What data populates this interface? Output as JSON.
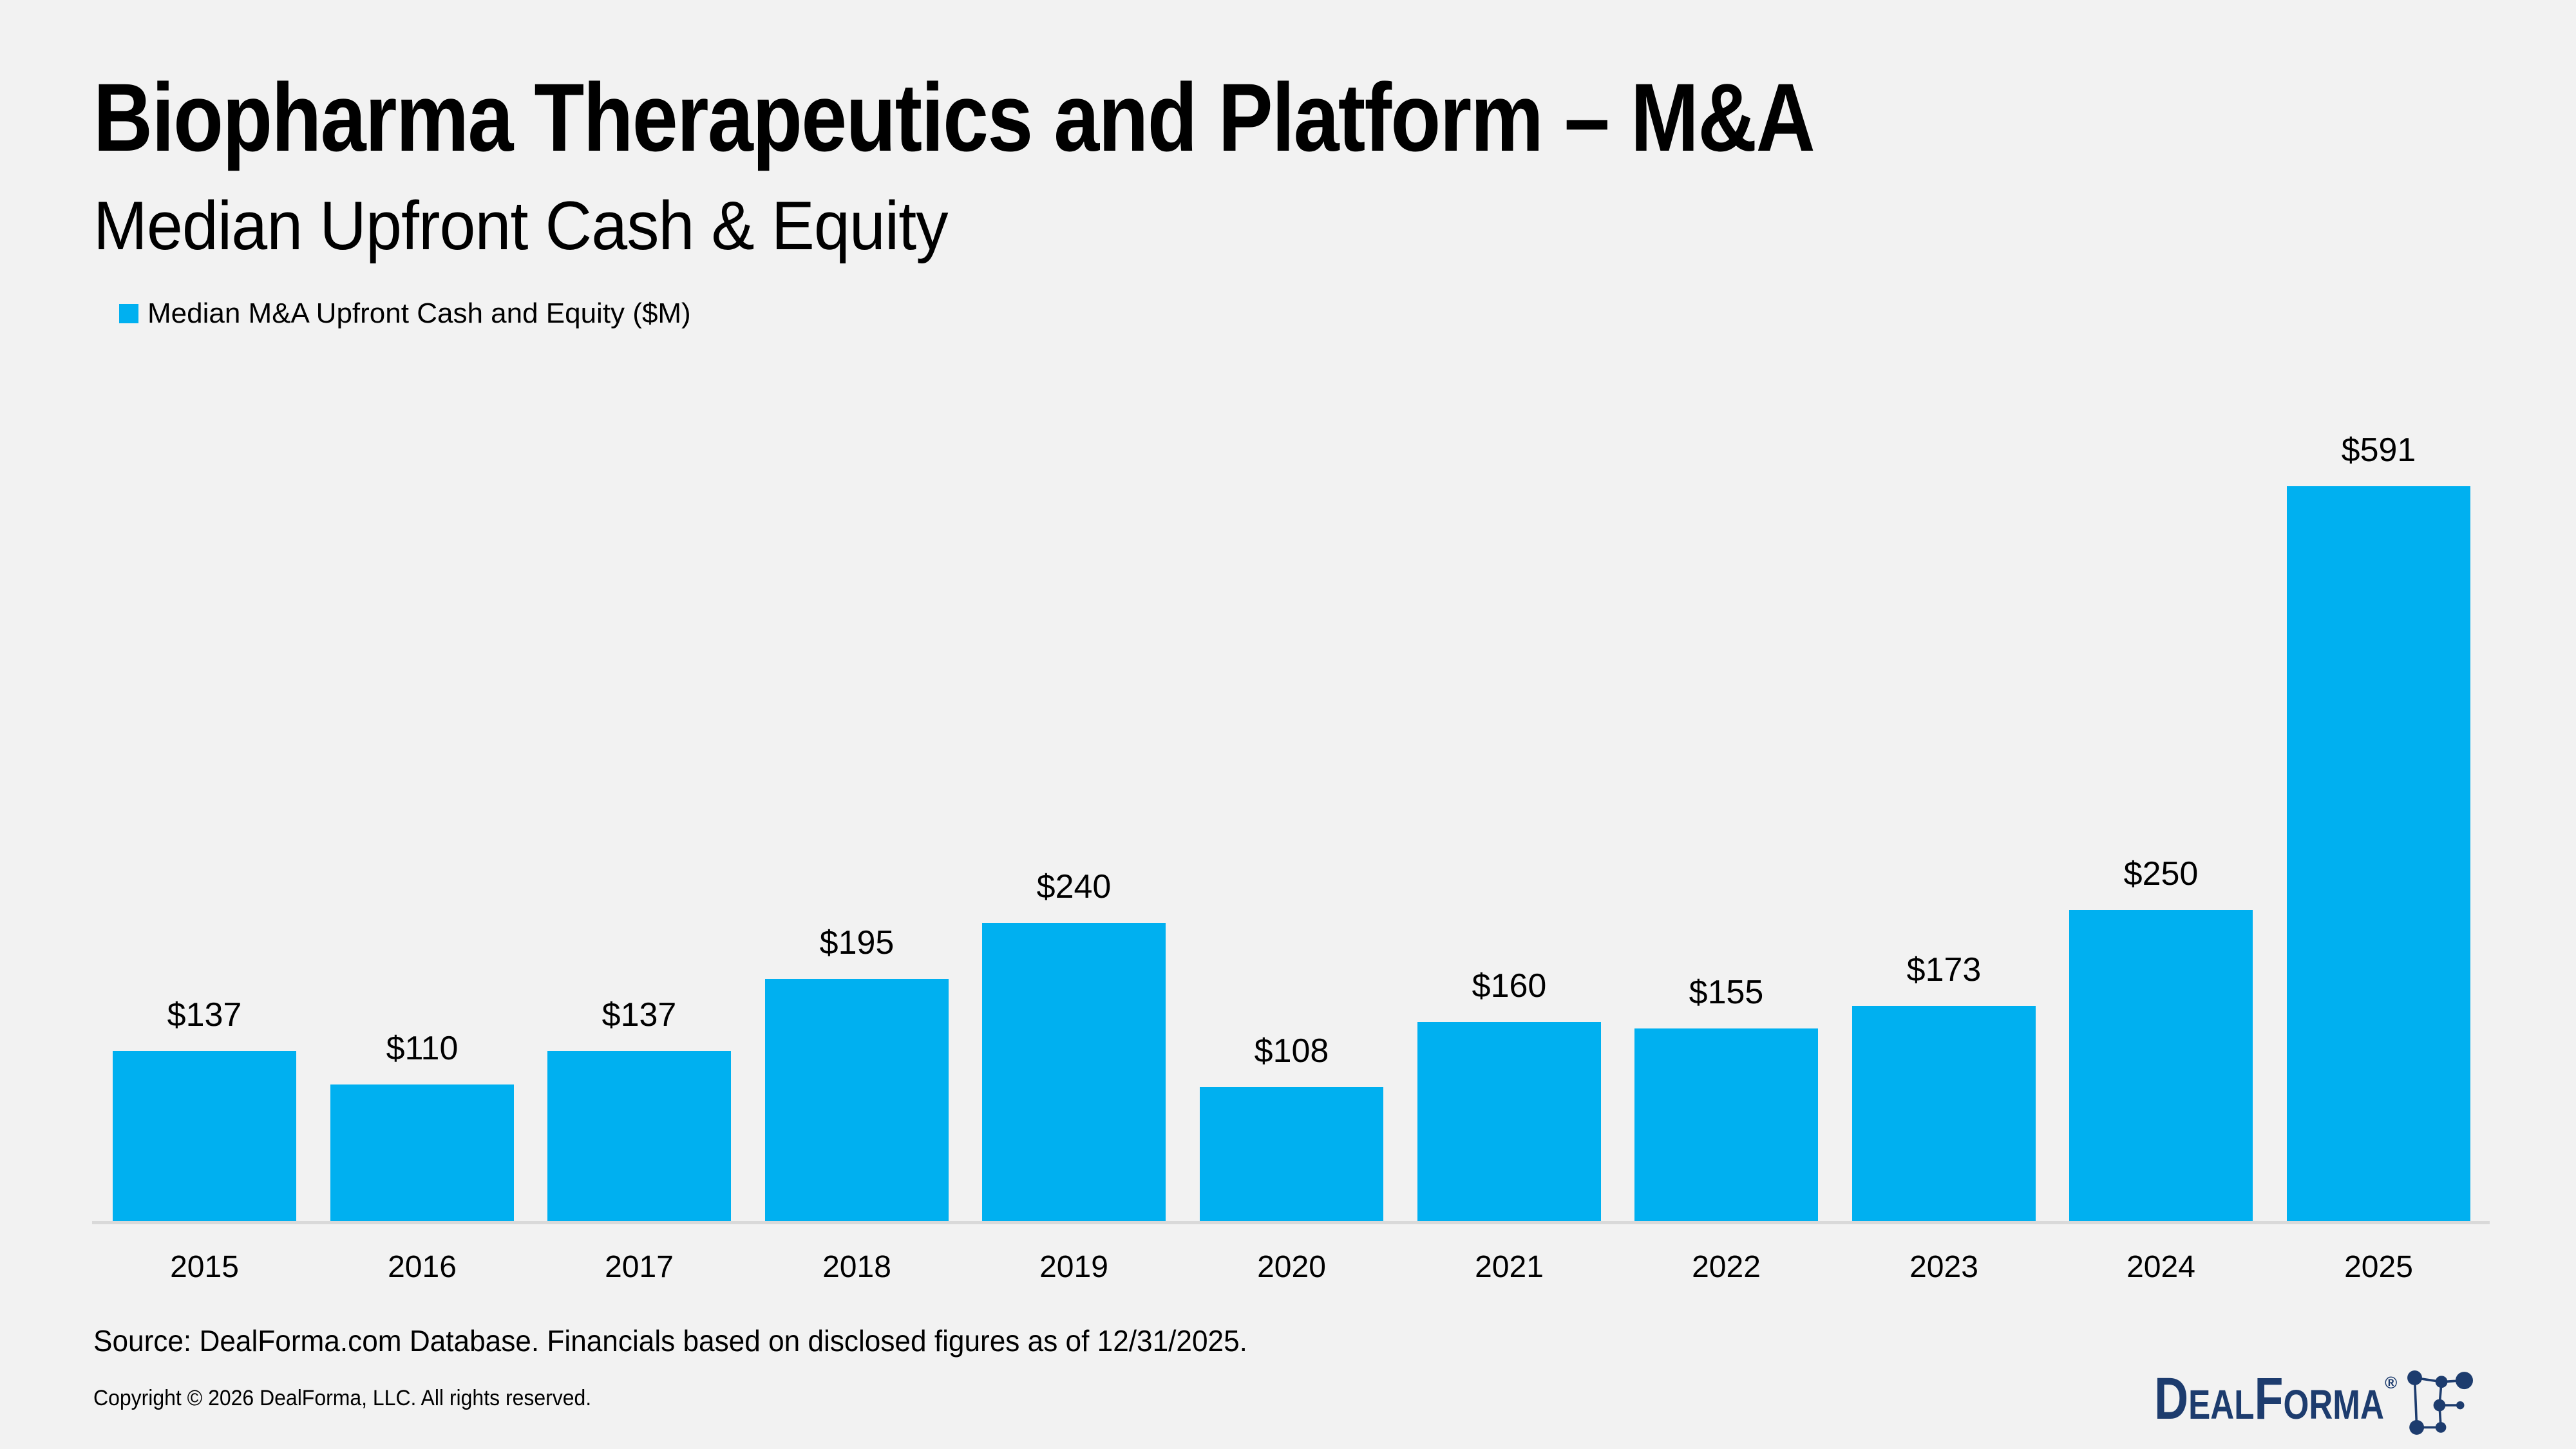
{
  "header": {
    "title": "Biopharma Therapeutics and Platform – M&A",
    "subtitle": "Median Upfront Cash & Equity"
  },
  "legend": {
    "label": "Median M&A Upfront Cash and Equity ($M)",
    "swatch_color": "#00B0F0"
  },
  "chart_data": {
    "type": "bar",
    "title": "Biopharma Therapeutics and Platform – M&A: Median Upfront Cash & Equity",
    "series_name": "Median M&A Upfront Cash and Equity ($M)",
    "categories": [
      "2015",
      "2016",
      "2017",
      "2018",
      "2019",
      "2020",
      "2021",
      "2022",
      "2023",
      "2024",
      "2025"
    ],
    "values": [
      137,
      110,
      137,
      195,
      240,
      108,
      160,
      155,
      173,
      250,
      591
    ],
    "labels": [
      "$137",
      "$110",
      "$137",
      "$195",
      "$240",
      "$108",
      "$160",
      "$155",
      "$173",
      "$250",
      "$591"
    ],
    "xlabel": "",
    "ylabel": "Median M&A Upfront Cash and Equity ($M)",
    "ylim": [
      0,
      620
    ],
    "grid": false,
    "legend_position": "top-left",
    "bar_color": "#00B0F0"
  },
  "footer": {
    "source": "Source: DealForma.com Database. Financials based on disclosed figures as of 12/31/2025.",
    "copyright": "Copyright © 2026 DealForma, LLC. All rights reserved.",
    "logo_text": "DealForma",
    "logo_registered": "®",
    "logo_color": "#1d3c6e"
  },
  "colors": {
    "background": "#f2f2f2",
    "axis_line": "#d9d9d9",
    "text": "#000000"
  }
}
